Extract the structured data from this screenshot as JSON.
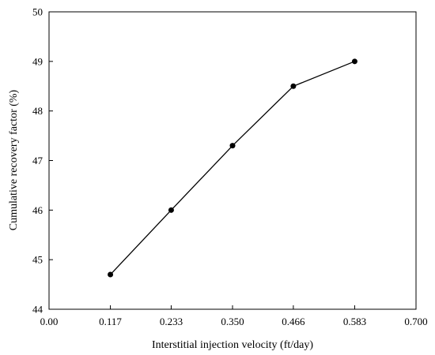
{
  "chart_data": {
    "type": "line",
    "xlabel": "Interstitial injection velocity (ft/day)",
    "ylabel": "Cumulative recovery factor (%)",
    "xlim": [
      0.0,
      0.7
    ],
    "ylim": [
      44,
      50
    ],
    "x_ticks": [
      0.0,
      0.117,
      0.233,
      0.35,
      0.466,
      0.583,
      0.7
    ],
    "x_tick_labels": [
      "0.00",
      "0.117",
      "0.233",
      "0.350",
      "0.466",
      "0.583",
      "0.700"
    ],
    "y_ticks": [
      44,
      45,
      46,
      47,
      48,
      49,
      50
    ],
    "y_tick_labels": [
      "44",
      "45",
      "46",
      "47",
      "48",
      "49",
      "50"
    ],
    "grid": false,
    "series": [
      {
        "x": [
          0.117,
          0.233,
          0.35,
          0.466,
          0.583
        ],
        "y": [
          44.7,
          46.0,
          47.3,
          48.5,
          49.0
        ],
        "color": "#000000",
        "marker": "circle"
      }
    ]
  }
}
